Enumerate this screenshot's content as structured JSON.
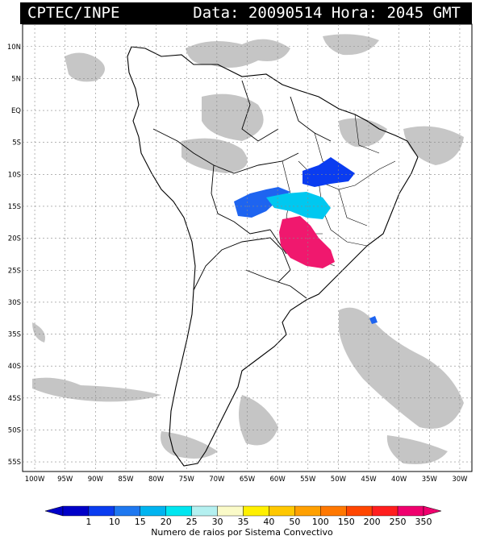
{
  "header": {
    "source": "CPTEC/INPE",
    "stamp": "Data: 20090514 Hora: 2045 GMT"
  },
  "map": {
    "lat_labels": [
      "10N",
      "5N",
      "EQ",
      "5S",
      "10S",
      "15S",
      "20S",
      "25S",
      "30S",
      "35S",
      "40S",
      "45S",
      "50S",
      "55S"
    ],
    "lon_labels": [
      "100W",
      "95W",
      "90W",
      "85W",
      "80W",
      "75W",
      "70W",
      "65W",
      "60W",
      "55W",
      "50W",
      "45W",
      "40W",
      "35W",
      "30W"
    ],
    "lat_values": [
      10,
      5,
      0,
      -5,
      -10,
      -15,
      -20,
      -25,
      -30,
      -35,
      -40,
      -45,
      -50,
      -55
    ],
    "lon_values": [
      -100,
      -95,
      -90,
      -85,
      -80,
      -75,
      -70,
      -65,
      -60,
      -55,
      -50,
      -45,
      -40,
      -35,
      -30
    ],
    "land_color": "#ffffff",
    "satellite_cloud_color": "#b8b8b8",
    "storm_systems": [
      {
        "name": "system-north-goias",
        "color": "#0a3cf0"
      },
      {
        "name": "system-mato-grosso",
        "color": "#1e64f0"
      },
      {
        "name": "system-central-cyan",
        "color": "#00c8f0"
      },
      {
        "name": "system-south-magenta",
        "color": "#f0186e"
      },
      {
        "name": "system-atlantic-small",
        "color": "#1e64f0"
      }
    ]
  },
  "colorbar": {
    "labels": [
      "1",
      "10",
      "15",
      "20",
      "25",
      "30",
      "35",
      "40",
      "50",
      "100",
      "150",
      "200",
      "250",
      "350"
    ],
    "colors": [
      "#0000c8",
      "#0a3cf0",
      "#1e78f0",
      "#00b4f0",
      "#00e6f0",
      "#b4f0f0",
      "#fafac8",
      "#fff000",
      "#ffc800",
      "#ffa000",
      "#ff7800",
      "#ff4600",
      "#ff1e1e",
      "#f0006e"
    ],
    "title": "Numero de raios por Sistema Convectivo"
  }
}
